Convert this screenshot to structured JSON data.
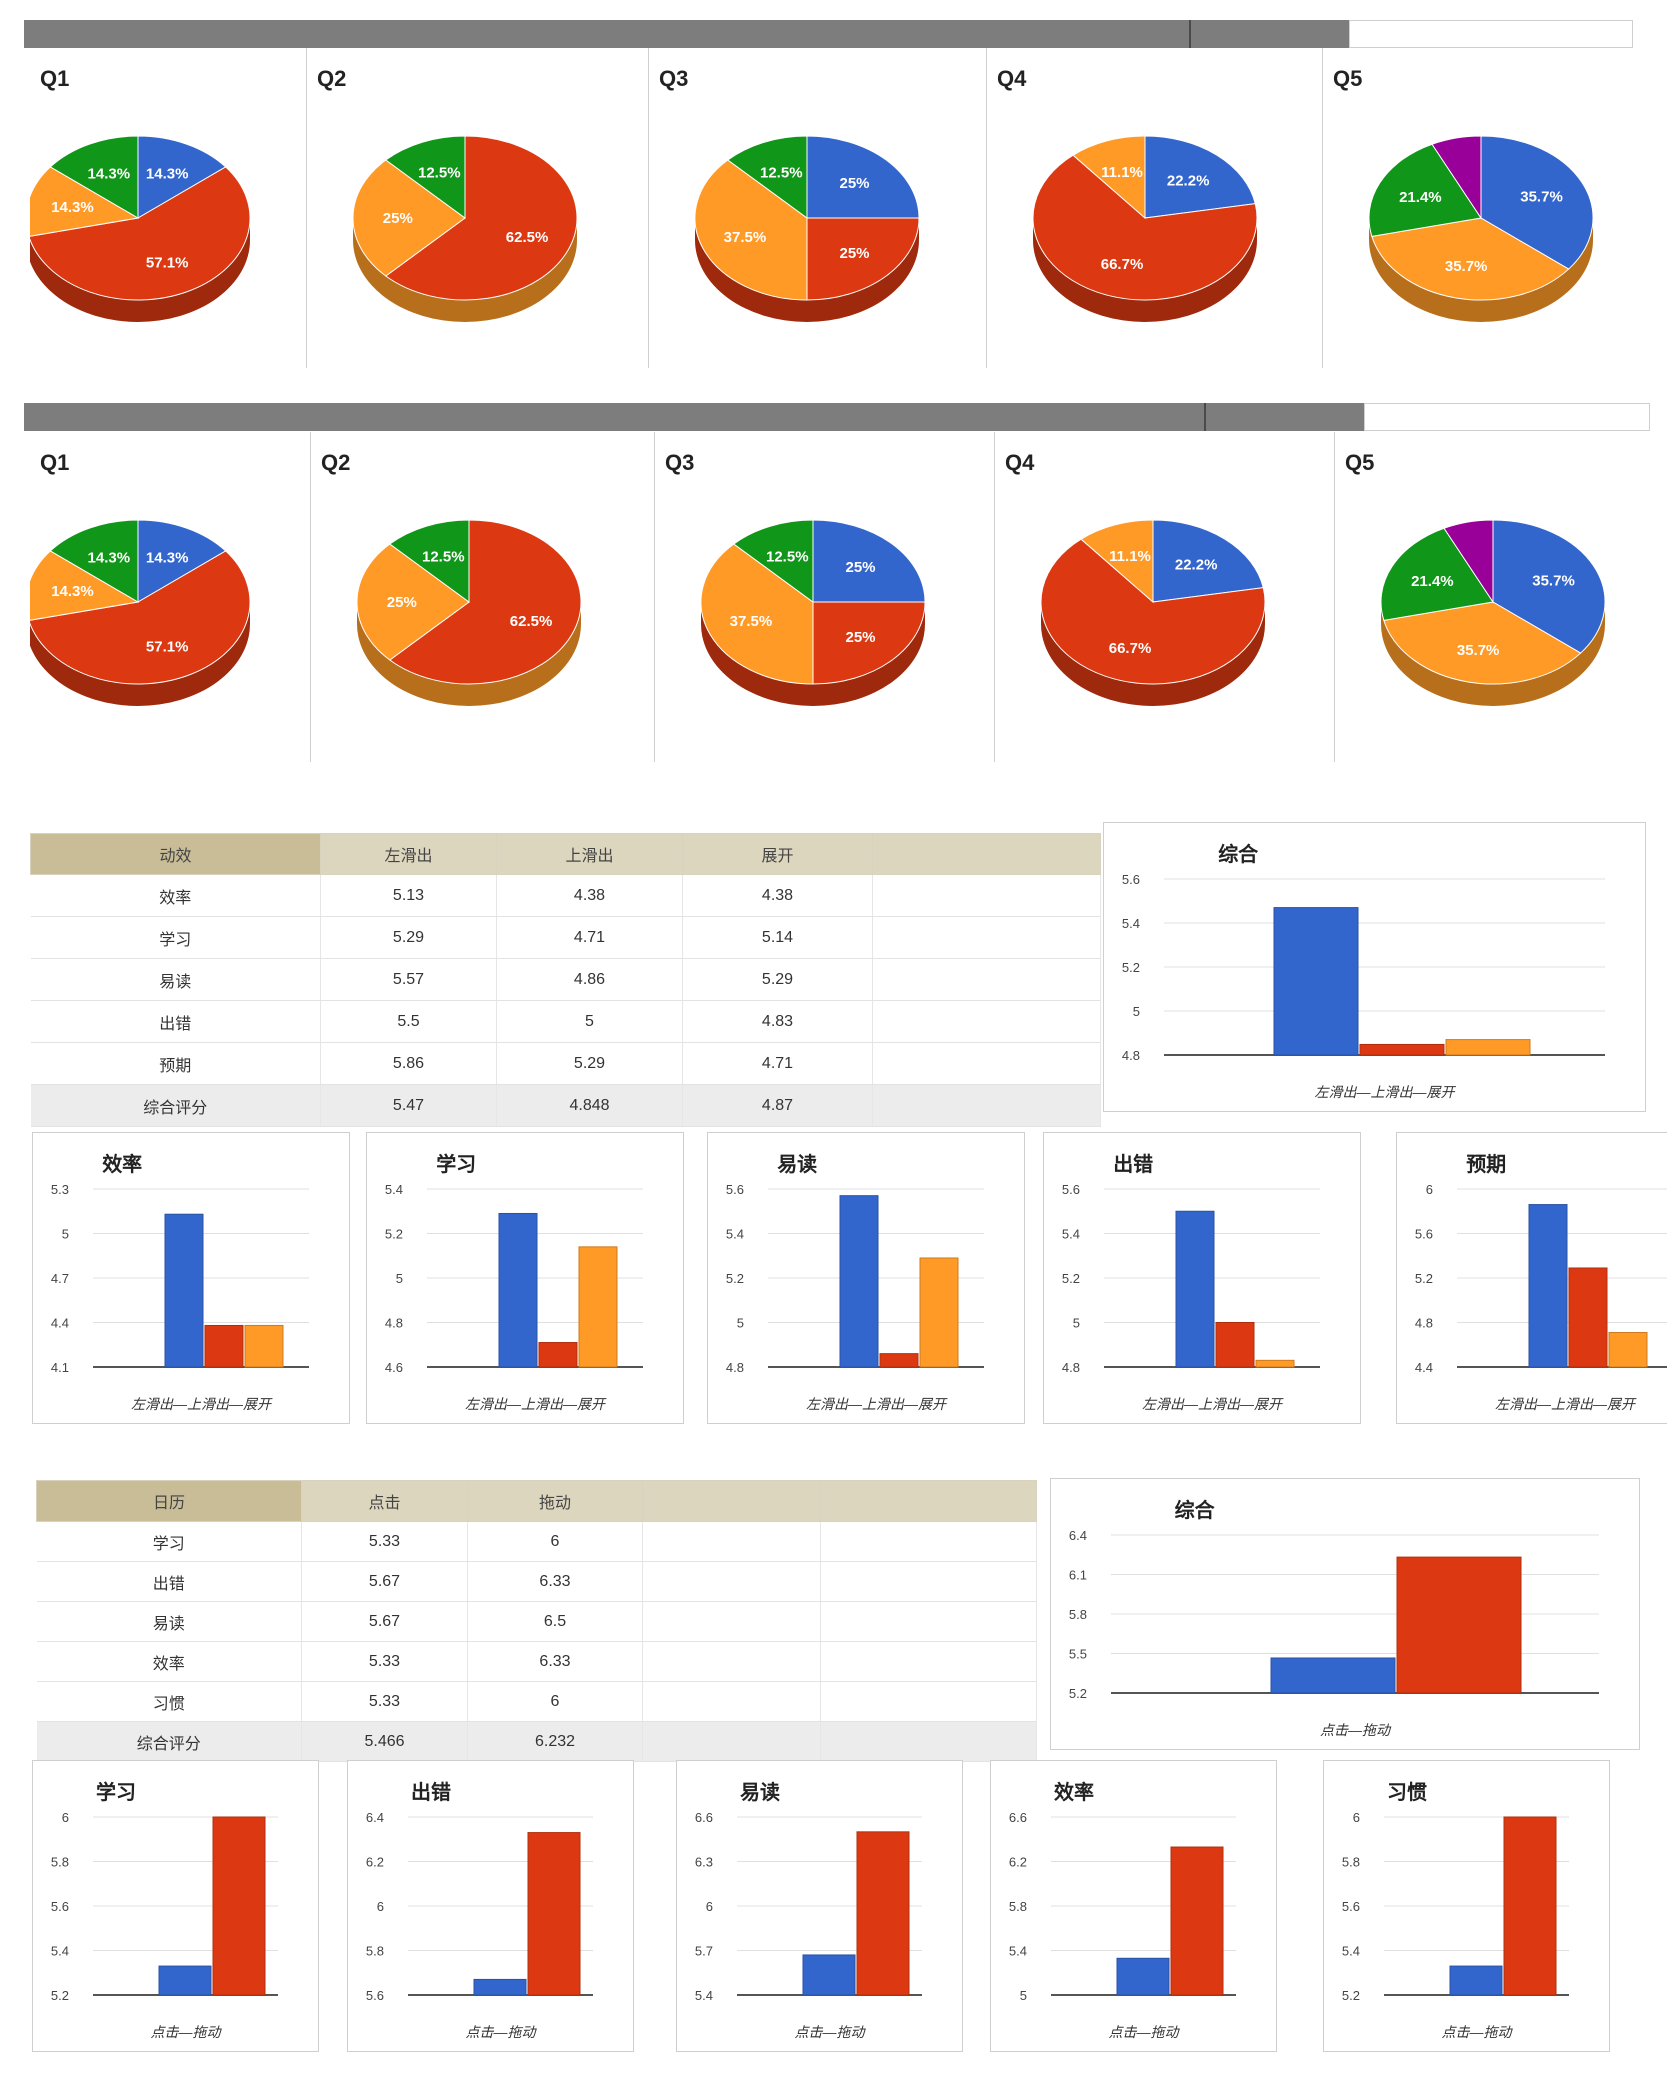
{
  "colors": {
    "blue": "#3366cc",
    "red": "#dc3912",
    "orange": "#ff9a27",
    "green": "#109618",
    "purple": "#990099"
  },
  "chart_data": [
    {
      "type": "pie",
      "group": "pies-1",
      "title": "Q1",
      "slices": [
        {
          "value": 14.3,
          "label": "14.3%",
          "color": "#3366cc"
        },
        {
          "value": 57.1,
          "label": "57.1%",
          "color": "#dc3912"
        },
        {
          "value": 14.3,
          "label": "14.3%",
          "color": "#ff9a27"
        },
        {
          "value": 14.3,
          "label": "14.3%",
          "color": "#109618"
        }
      ]
    },
    {
      "type": "pie",
      "group": "pies-1",
      "title": "Q2",
      "slices": [
        {
          "value": 62.5,
          "label": "62.5%",
          "color": "#dc3912"
        },
        {
          "value": 25,
          "label": "25%",
          "color": "#ff9a27"
        },
        {
          "value": 12.5,
          "label": "12.5%",
          "color": "#109618"
        }
      ]
    },
    {
      "type": "pie",
      "group": "pies-1",
      "title": "Q3",
      "slices": [
        {
          "value": 25,
          "label": "25%",
          "color": "#3366cc"
        },
        {
          "value": 25,
          "label": "25%",
          "color": "#dc3912"
        },
        {
          "value": 37.5,
          "label": "37.5%",
          "color": "#ff9a27"
        },
        {
          "value": 12.5,
          "label": "12.5%",
          "color": "#109618"
        }
      ]
    },
    {
      "type": "pie",
      "group": "pies-1",
      "title": "Q4",
      "slices": [
        {
          "value": 22.2,
          "label": "22.2%",
          "color": "#3366cc"
        },
        {
          "value": 66.7,
          "label": "66.7%",
          "color": "#dc3912"
        },
        {
          "value": 11.1,
          "label": "11.1%",
          "color": "#ff9a27"
        }
      ]
    },
    {
      "type": "pie",
      "group": "pies-1",
      "title": "Q5",
      "slices": [
        {
          "value": 35.7,
          "label": "35.7%",
          "color": "#3366cc"
        },
        {
          "value": 35.7,
          "label": "35.7%",
          "color": "#ff9a27"
        },
        {
          "value": 21.4,
          "label": "21.4%",
          "color": "#109618"
        },
        {
          "value": 7.2,
          "label": "",
          "color": "#990099"
        }
      ]
    },
    {
      "type": "pie",
      "group": "pies-2",
      "title": "Q1",
      "slices": [
        {
          "value": 14.3,
          "label": "14.3%",
          "color": "#3366cc"
        },
        {
          "value": 57.1,
          "label": "57.1%",
          "color": "#dc3912"
        },
        {
          "value": 14.3,
          "label": "14.3%",
          "color": "#ff9a27"
        },
        {
          "value": 14.3,
          "label": "14.3%",
          "color": "#109618"
        }
      ]
    },
    {
      "type": "pie",
      "group": "pies-2",
      "title": "Q2",
      "slices": [
        {
          "value": 62.5,
          "label": "62.5%",
          "color": "#dc3912"
        },
        {
          "value": 25,
          "label": "25%",
          "color": "#ff9a27"
        },
        {
          "value": 12.5,
          "label": "12.5%",
          "color": "#109618"
        }
      ]
    },
    {
      "type": "pie",
      "group": "pies-2",
      "title": "Q3",
      "slices": [
        {
          "value": 25,
          "label": "25%",
          "color": "#3366cc"
        },
        {
          "value": 25,
          "label": "25%",
          "color": "#dc3912"
        },
        {
          "value": 37.5,
          "label": "37.5%",
          "color": "#ff9a27"
        },
        {
          "value": 12.5,
          "label": "12.5%",
          "color": "#109618"
        }
      ]
    },
    {
      "type": "pie",
      "group": "pies-2",
      "title": "Q4",
      "slices": [
        {
          "value": 22.2,
          "label": "22.2%",
          "color": "#3366cc"
        },
        {
          "value": 66.7,
          "label": "66.7%",
          "color": "#dc3912"
        },
        {
          "value": 11.1,
          "label": "11.1%",
          "color": "#ff9a27"
        }
      ]
    },
    {
      "type": "pie",
      "group": "pies-2",
      "title": "Q5",
      "slices": [
        {
          "value": 35.7,
          "label": "35.7%",
          "color": "#3366cc"
        },
        {
          "value": 35.7,
          "label": "35.7%",
          "color": "#ff9a27"
        },
        {
          "value": 21.4,
          "label": "21.4%",
          "color": "#109618"
        },
        {
          "value": 7.2,
          "label": "",
          "color": "#990099"
        }
      ]
    },
    {
      "type": "table",
      "group": "table-1",
      "columns": [
        "动效",
        "左滑出",
        "上滑出",
        "展开",
        ""
      ],
      "rows": [
        [
          "效率",
          "5.13",
          "4.38",
          "4.38",
          ""
        ],
        [
          "学习",
          "5.29",
          "4.71",
          "5.14",
          ""
        ],
        [
          "易读",
          "5.57",
          "4.86",
          "5.29",
          ""
        ],
        [
          "出错",
          "5.5",
          "5",
          "4.83",
          ""
        ],
        [
          "预期",
          "5.86",
          "5.29",
          "4.71",
          ""
        ],
        [
          "综合评分",
          "5.47",
          "4.848",
          "4.87",
          ""
        ]
      ]
    },
    {
      "type": "bar",
      "group": "bars-1-main",
      "title": "综合",
      "xlabel": "左滑出—上滑出—展开",
      "yticks": [
        "5.6",
        "5.4",
        "5.2",
        "5",
        "4.8"
      ],
      "ylim": [
        4.8,
        5.6
      ],
      "values": [
        5.47,
        4.848,
        4.87
      ],
      "colors": [
        "#3366cc",
        "#dc3912",
        "#ff9a27"
      ]
    },
    {
      "type": "bar",
      "group": "bars-1",
      "title": "效率",
      "xlabel": "左滑出—上滑出—展开",
      "yticks": [
        "5.3",
        "5",
        "4.7",
        "4.4",
        "4.1"
      ],
      "ylim": [
        4.1,
        5.3
      ],
      "values": [
        5.13,
        4.38,
        4.38
      ],
      "colors": [
        "#3366cc",
        "#dc3912",
        "#ff9a27"
      ]
    },
    {
      "type": "bar",
      "group": "bars-1",
      "title": "学习",
      "xlabel": "左滑出—上滑出—展开",
      "yticks": [
        "5.4",
        "5.2",
        "5",
        "4.8",
        "4.6"
      ],
      "ylim": [
        4.6,
        5.4
      ],
      "values": [
        5.29,
        4.71,
        5.14
      ],
      "colors": [
        "#3366cc",
        "#dc3912",
        "#ff9a27"
      ]
    },
    {
      "type": "bar",
      "group": "bars-1",
      "title": "易读",
      "xlabel": "左滑出—上滑出—展开",
      "yticks": [
        "5.6",
        "5.4",
        "5.2",
        "5",
        "4.8"
      ],
      "ylim": [
        4.8,
        5.6
      ],
      "values": [
        5.57,
        4.86,
        5.29
      ],
      "colors": [
        "#3366cc",
        "#dc3912",
        "#ff9a27"
      ]
    },
    {
      "type": "bar",
      "group": "bars-1",
      "title": "出错",
      "xlabel": "左滑出—上滑出—展开",
      "yticks": [
        "5.6",
        "5.4",
        "5.2",
        "5",
        "4.8"
      ],
      "ylim": [
        4.8,
        5.6
      ],
      "values": [
        5.5,
        5,
        4.83
      ],
      "colors": [
        "#3366cc",
        "#dc3912",
        "#ff9a27"
      ]
    },
    {
      "type": "bar",
      "group": "bars-1",
      "title": "预期",
      "xlabel": "左滑出—上滑出—展开",
      "yticks": [
        "6",
        "5.6",
        "5.2",
        "4.8",
        "4.4"
      ],
      "ylim": [
        4.4,
        6
      ],
      "values": [
        5.86,
        5.29,
        4.71
      ],
      "colors": [
        "#3366cc",
        "#dc3912",
        "#ff9a27"
      ]
    },
    {
      "type": "table",
      "group": "table-2",
      "columns": [
        "日历",
        "点击",
        "拖动",
        "",
        ""
      ],
      "rows": [
        [
          "学习",
          "5.33",
          "6",
          "",
          ""
        ],
        [
          "出错",
          "5.67",
          "6.33",
          "",
          ""
        ],
        [
          "易读",
          "5.67",
          "6.5",
          "",
          ""
        ],
        [
          "效率",
          "5.33",
          "6.33",
          "",
          ""
        ],
        [
          "习惯",
          "5.33",
          "6",
          "",
          ""
        ],
        [
          "综合评分",
          "5.466",
          "6.232",
          "",
          ""
        ]
      ]
    },
    {
      "type": "bar",
      "group": "bars-2-main",
      "title": "综合",
      "xlabel": "点击—拖动",
      "yticks": [
        "6.4",
        "6.1",
        "5.8",
        "5.5",
        "5.2"
      ],
      "ylim": [
        5.2,
        6.4
      ],
      "values": [
        5.466,
        6.232
      ],
      "colors": [
        "#3366cc",
        "#dc3912"
      ]
    },
    {
      "type": "bar",
      "group": "bars-2",
      "title": "学习",
      "xlabel": "点击—拖动",
      "yticks": [
        "6",
        "5.8",
        "5.6",
        "5.4",
        "5.2"
      ],
      "ylim": [
        5.2,
        6
      ],
      "values": [
        5.33,
        6
      ],
      "colors": [
        "#3366cc",
        "#dc3912"
      ]
    },
    {
      "type": "bar",
      "group": "bars-2",
      "title": "出错",
      "xlabel": "点击—拖动",
      "yticks": [
        "6.4",
        "6.2",
        "6",
        "5.8",
        "5.6"
      ],
      "ylim": [
        5.6,
        6.4
      ],
      "values": [
        5.67,
        6.33
      ],
      "colors": [
        "#3366cc",
        "#dc3912"
      ]
    },
    {
      "type": "bar",
      "group": "bars-2",
      "title": "易读",
      "xlabel": "点击—拖动",
      "yticks": [
        "6.6",
        "6.3",
        "6",
        "5.7",
        "5.4"
      ],
      "ylim": [
        5.4,
        6.6
      ],
      "values": [
        5.67,
        6.5
      ],
      "colors": [
        "#3366cc",
        "#dc3912"
      ]
    },
    {
      "type": "bar",
      "group": "bars-2",
      "title": "效率",
      "xlabel": "点击—拖动",
      "yticks": [
        "6.6",
        "6.2",
        "5.8",
        "5.4",
        "5"
      ],
      "ylim": [
        5,
        6.6
      ],
      "values": [
        5.33,
        6.33
      ],
      "colors": [
        "#3366cc",
        "#dc3912"
      ]
    },
    {
      "type": "bar",
      "group": "bars-2",
      "title": "习惯",
      "xlabel": "点击—拖动",
      "yticks": [
        "6",
        "5.8",
        "5.6",
        "5.4",
        "5.2"
      ],
      "ylim": [
        5.2,
        6
      ],
      "values": [
        5.33,
        6
      ],
      "colors": [
        "#3366cc",
        "#dc3912"
      ]
    }
  ]
}
